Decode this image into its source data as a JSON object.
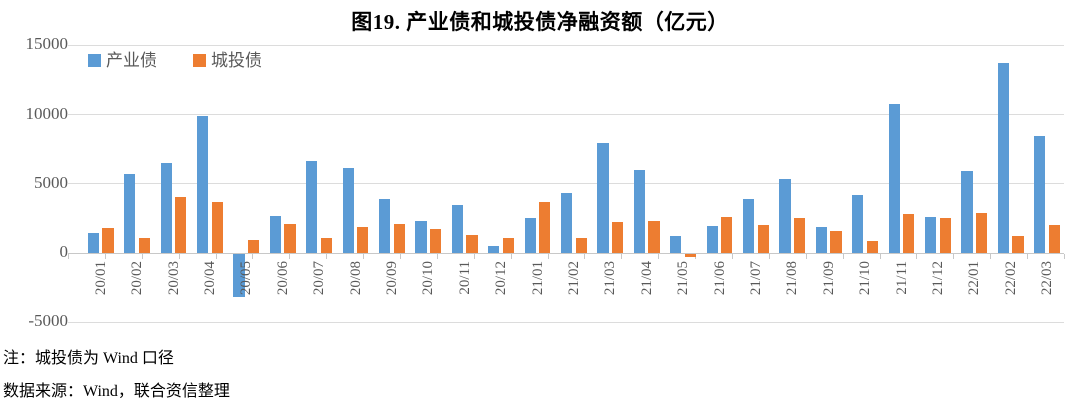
{
  "title": "图19.  产业债和城投债净融资额（亿元）",
  "notes": {
    "note": "注：城投债为 Wind 口径",
    "source": "数据来源：Wind，联合资信整理"
  },
  "colors": {
    "series1": "#5B9BD5",
    "series2": "#ED7D31",
    "gridline": "#DCDCDC",
    "axis_text": "#595959",
    "title_text": "#000000"
  },
  "chart_data": {
    "type": "bar",
    "title": "图19.  产业债和城投债净融资额（亿元）",
    "xlabel": "",
    "ylabel": "",
    "ylim": [
      -5000,
      15000
    ],
    "yticks": [
      15000,
      10000,
      5000,
      0,
      -5000
    ],
    "grid": true,
    "legend_position": "top-left",
    "categories": [
      "20/01",
      "20/02",
      "20/03",
      "20/04",
      "20/05",
      "20/06",
      "20/07",
      "20/08",
      "20/09",
      "20/10",
      "20/11",
      "20/12",
      "21/01",
      "21/02",
      "21/03",
      "21/04",
      "21/05",
      "21/06",
      "21/07",
      "21/08",
      "21/09",
      "21/10",
      "21/11",
      "21/12",
      "22/01",
      "22/02",
      "22/03"
    ],
    "series": [
      {
        "name": "产业债",
        "color": "#5B9BD5",
        "values": [
          1450,
          5650,
          6450,
          9900,
          -3150,
          2650,
          6600,
          6100,
          3900,
          2300,
          3450,
          480,
          2500,
          4350,
          7950,
          5950,
          1200,
          1900,
          3900,
          5300,
          1850,
          4150,
          10750,
          2550,
          5900,
          13700,
          8400
        ]
      },
      {
        "name": "城投债",
        "color": "#ED7D31",
        "values": [
          1800,
          1100,
          4000,
          3700,
          900,
          2100,
          1050,
          1850,
          2050,
          1700,
          1300,
          1050,
          3700,
          1100,
          2200,
          2300,
          -250,
          2600,
          2000,
          2500,
          1600,
          850,
          2800,
          2500,
          2850,
          1200,
          2000
        ]
      }
    ]
  }
}
